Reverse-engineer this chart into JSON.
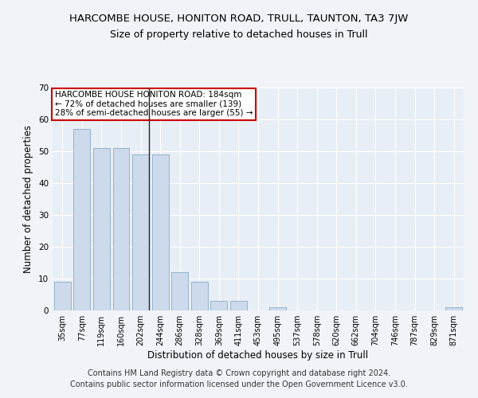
{
  "title": "HARCOMBE HOUSE, HONITON ROAD, TRULL, TAUNTON, TA3 7JW",
  "subtitle": "Size of property relative to detached houses in Trull",
  "xlabel": "Distribution of detached houses by size in Trull",
  "ylabel": "Number of detached properties",
  "categories": [
    "35sqm",
    "77sqm",
    "119sqm",
    "160sqm",
    "202sqm",
    "244sqm",
    "286sqm",
    "328sqm",
    "369sqm",
    "411sqm",
    "453sqm",
    "495sqm",
    "537sqm",
    "578sqm",
    "620sqm",
    "662sqm",
    "704sqm",
    "746sqm",
    "787sqm",
    "829sqm",
    "871sqm"
  ],
  "values": [
    9,
    57,
    51,
    51,
    49,
    49,
    12,
    9,
    3,
    3,
    0,
    1,
    0,
    0,
    0,
    0,
    0,
    0,
    0,
    0,
    1
  ],
  "bar_color": "#ccdaeb",
  "bar_edge_color": "#8aaac8",
  "highlight_index": 4,
  "highlight_line_color": "#222222",
  "ylim": [
    0,
    70
  ],
  "yticks": [
    0,
    10,
    20,
    30,
    40,
    50,
    60,
    70
  ],
  "annotation_text": "HARCOMBE HOUSE HONITON ROAD: 184sqm\n← 72% of detached houses are smaller (139)\n28% of semi-detached houses are larger (55) →",
  "annotation_box_color": "#ffffff",
  "annotation_box_edgecolor": "#cc0000",
  "footer": "Contains HM Land Registry data © Crown copyright and database right 2024.\nContains public sector information licensed under the Open Government Licence v3.0.",
  "background_color": "#f0f4f8",
  "plot_background_color": "#e8eef5",
  "grid_color": "#ffffff",
  "title_fontsize": 9.5,
  "subtitle_fontsize": 9,
  "ylabel_fontsize": 8.5,
  "xlabel_fontsize": 8.5,
  "tick_fontsize": 7,
  "annot_fontsize": 7.5,
  "footer_fontsize": 7
}
